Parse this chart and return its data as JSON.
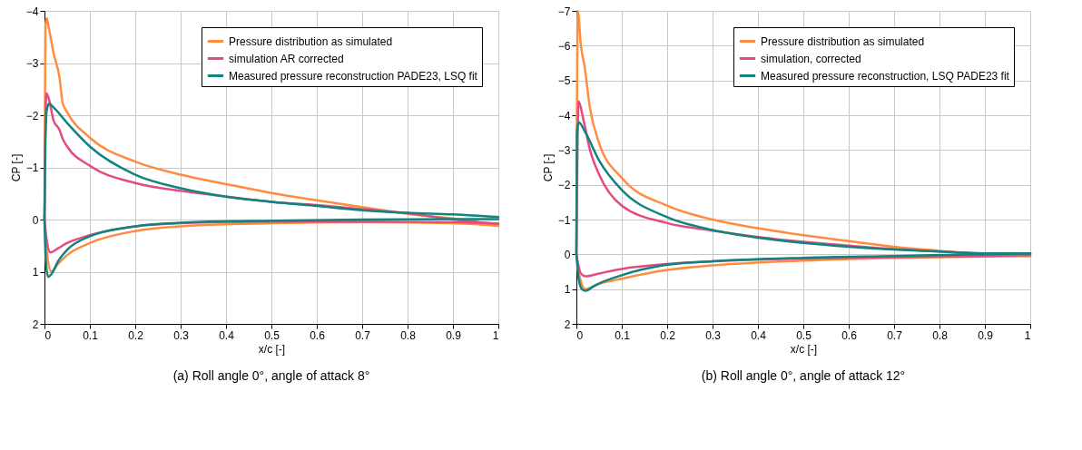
{
  "chart_data": [
    {
      "type": "line",
      "title": "(a) Roll angle 0°, angle of attack 8°",
      "xlabel": "x/c [-]",
      "ylabel": "CP [-]",
      "xlim": [
        0,
        1
      ],
      "ylim": [
        2,
        -4
      ],
      "xticks": [
        0,
        0.1,
        0.2,
        0.3,
        0.4,
        0.5,
        0.6,
        0.7,
        0.8,
        0.9,
        1
      ],
      "yticks": [
        -4,
        -3,
        -2,
        -1,
        0,
        1,
        2
      ],
      "grid": true,
      "legend": "top right",
      "line_style": "solid",
      "series": [
        {
          "name": "Pressure distribution as simulated",
          "color": "#ff8c3f",
          "x": [
            0,
            0.002,
            0.005,
            0.01,
            0.02,
            0.033,
            0.04,
            0.05,
            0.1,
            0.2,
            0.3,
            0.4,
            0.5,
            0.6,
            0.7,
            0.8,
            0.9,
            1
          ],
          "values": [
            0,
            -3.7,
            -3.86,
            -3.65,
            -3.19,
            -2.73,
            -2.24,
            -2.06,
            -1.57,
            -1.11,
            -0.86,
            -0.68,
            -0.51,
            -0.37,
            -0.24,
            -0.11,
            -0.02,
            0.12
          ]
        },
        {
          "color": "#ff8c3f",
          "x": [
            0,
            0.005,
            0.015,
            0.03,
            0.05,
            0.1,
            0.2,
            0.3,
            0.5,
            0.7,
            0.9,
            1
          ],
          "values": [
            0,
            0.6,
            1.0,
            0.85,
            0.68,
            0.45,
            0.22,
            0.13,
            0.07,
            0.05,
            0.07,
            0.12
          ]
        },
        {
          "name": "simulation AR corrected",
          "color": "#e64a7e",
          "x": [
            0,
            0.004,
            0.01,
            0.02,
            0.033,
            0.04,
            0.05,
            0.1,
            0.2,
            0.3,
            0.4,
            0.5,
            0.6,
            0.7,
            0.8,
            0.9,
            1
          ],
          "values": [
            0,
            -2.42,
            -2.3,
            -1.9,
            -1.72,
            -1.55,
            -1.4,
            -1.03,
            -0.7,
            -0.55,
            -0.44,
            -0.34,
            -0.28,
            -0.2,
            -0.12,
            0.0,
            0.08
          ]
        },
        {
          "color": "#e64a7e",
          "x": [
            0,
            0.005,
            0.013,
            0.03,
            0.05,
            0.1,
            0.2,
            0.3,
            0.5,
            0.7,
            0.9,
            1
          ],
          "values": [
            0,
            0.4,
            0.63,
            0.55,
            0.45,
            0.3,
            0.13,
            0.07,
            0.04,
            0.04,
            0.05,
            0.08
          ]
        },
        {
          "name": "Measured pressure reconstruction PADE23, LSQ fit",
          "color": "#11847e",
          "x": [
            0,
            0.002,
            0.005,
            0.01,
            0.02,
            0.05,
            0.1,
            0.2,
            0.3,
            0.4,
            0.5,
            0.6,
            0.7,
            0.8,
            0.9,
            1
          ],
          "values": [
            0,
            -1.5,
            -2.1,
            -2.22,
            -2.15,
            -1.85,
            -1.4,
            -0.86,
            -0.6,
            -0.44,
            -0.34,
            -0.26,
            -0.18,
            -0.13,
            -0.1,
            -0.05
          ]
        },
        {
          "color": "#11847e",
          "x": [
            0,
            0.003,
            0.008,
            0.015,
            0.03,
            0.05,
            0.1,
            0.2,
            0.3,
            0.5,
            0.7,
            1
          ],
          "values": [
            0,
            0.8,
            1.1,
            1.05,
            0.8,
            0.58,
            0.32,
            0.13,
            0.06,
            0.02,
            0.0,
            -0.01
          ]
        }
      ]
    },
    {
      "type": "line",
      "title": "(b) Roll angle 0°, angle of attack 12°",
      "xlabel": "x/c [-]",
      "ylabel": "CP [-]",
      "xlim": [
        0,
        1
      ],
      "ylim": [
        2,
        -7
      ],
      "xticks": [
        0,
        0.1,
        0.2,
        0.3,
        0.4,
        0.5,
        0.6,
        0.7,
        0.8,
        0.9,
        1
      ],
      "yticks": [
        -7,
        -6,
        -5,
        -4,
        -3,
        -2,
        -1,
        0,
        1,
        2
      ],
      "grid": true,
      "legend": "top right",
      "line_style": "solid",
      "series": [
        {
          "name": "Pressure distribution as simulated",
          "color": "#ff8c3f",
          "x": [
            0,
            0.003,
            0.01,
            0.018,
            0.03,
            0.05,
            0.1,
            0.2,
            0.3,
            0.4,
            0.5,
            0.6,
            0.7,
            0.8,
            0.9,
            1
          ],
          "values": [
            0,
            -7.0,
            -6.0,
            -5.4,
            -4.2,
            -3.2,
            -2.2,
            -1.4,
            -1.0,
            -0.75,
            -0.55,
            -0.38,
            -0.22,
            -0.1,
            0.0,
            0.05
          ]
        },
        {
          "color": "#ff8c3f",
          "x": [
            0,
            0.008,
            0.02,
            0.05,
            0.1,
            0.2,
            0.3,
            0.5,
            0.7,
            0.9,
            1
          ],
          "values": [
            0,
            0.7,
            1.0,
            0.85,
            0.7,
            0.45,
            0.32,
            0.18,
            0.1,
            0.06,
            0.05
          ]
        },
        {
          "name": "simulation, corrected",
          "color": "#e64a7e",
          "x": [
            0,
            0.005,
            0.015,
            0.03,
            0.05,
            0.1,
            0.2,
            0.3,
            0.4,
            0.5,
            0.6,
            0.7,
            0.8,
            0.9,
            1
          ],
          "values": [
            0,
            -4.4,
            -3.9,
            -3.0,
            -2.3,
            -1.4,
            -0.9,
            -0.68,
            -0.5,
            -0.36,
            -0.25,
            -0.15,
            -0.08,
            -0.02,
            0.02
          ]
        },
        {
          "color": "#e64a7e",
          "x": [
            0,
            0.01,
            0.02,
            0.05,
            0.1,
            0.2,
            0.3,
            0.5,
            0.7,
            0.9,
            1
          ],
          "values": [
            0,
            0.55,
            0.63,
            0.55,
            0.42,
            0.28,
            0.2,
            0.12,
            0.08,
            0.05,
            0.02
          ]
        },
        {
          "name": "Measured pressure reconstruction, LSQ PADE23 fit",
          "color": "#11847e",
          "x": [
            0,
            0.001,
            0.005,
            0.02,
            0.05,
            0.1,
            0.2,
            0.3,
            0.4,
            0.5,
            0.6,
            0.7,
            0.8,
            0.9,
            1
          ],
          "values": [
            0,
            -3.5,
            -3.8,
            -3.5,
            -2.7,
            -1.85,
            -1.07,
            -0.7,
            -0.48,
            -0.33,
            -0.22,
            -0.14,
            -0.08,
            -0.03,
            -0.03
          ]
        },
        {
          "color": "#11847e",
          "x": [
            0,
            0.005,
            0.012,
            0.02,
            0.04,
            0.1,
            0.2,
            0.3,
            0.5,
            0.7,
            1
          ],
          "values": [
            0,
            0.7,
            1.0,
            1.05,
            0.9,
            0.6,
            0.3,
            0.2,
            0.1,
            0.05,
            -0.03
          ]
        }
      ]
    }
  ]
}
